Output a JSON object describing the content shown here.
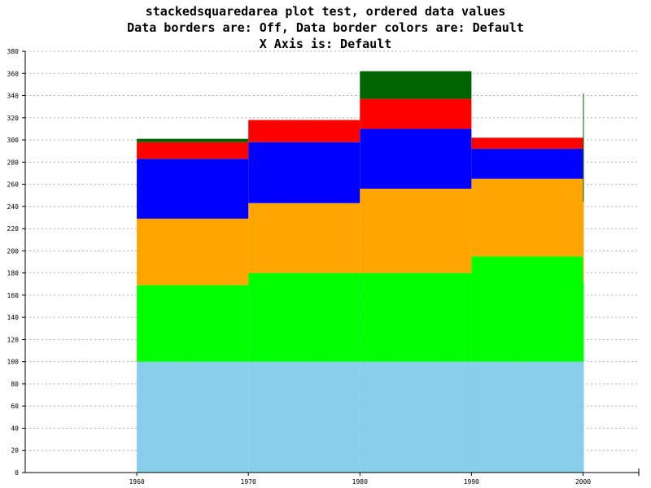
{
  "title_lines": [
    "stackedsquaredarea plot test, ordered data values",
    "Data borders are: Off, Data border colors are: Default",
    "X Axis is: Default"
  ],
  "chart_data": {
    "type": "area",
    "stacked": true,
    "step": true,
    "x": [
      1960,
      1970,
      1980,
      1990,
      2000
    ],
    "xticks": [
      1960,
      1970,
      1980,
      1990,
      2000
    ],
    "xlim": [
      1950,
      2005
    ],
    "ylim": [
      0,
      380
    ],
    "yticks": [
      0,
      20,
      40,
      60,
      80,
      100,
      120,
      140,
      160,
      180,
      200,
      220,
      240,
      260,
      280,
      300,
      320,
      340,
      360,
      380
    ],
    "grid": true,
    "series": [
      {
        "color": "#87ceeb",
        "values": [
          100,
          100,
          100,
          100,
          100
        ]
      },
      {
        "color": "#00ff00",
        "values": [
          69,
          80,
          80,
          95,
          72
        ]
      },
      {
        "color": "#ffa500",
        "values": [
          60,
          63,
          76,
          70,
          72
        ]
      },
      {
        "color": "#0000ff",
        "values": [
          54,
          55,
          54,
          27,
          0
        ]
      },
      {
        "color": "#ff0000",
        "values": [
          15,
          20,
          27,
          10,
          0
        ]
      },
      {
        "color": "#006400",
        "values": [
          3,
          0,
          25,
          0,
          98
        ]
      }
    ]
  }
}
